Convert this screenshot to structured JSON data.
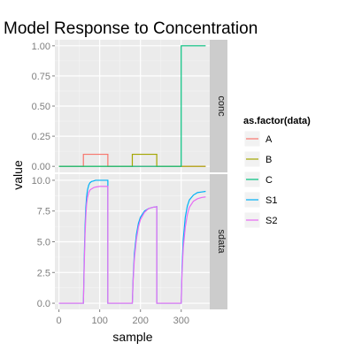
{
  "chart_data": {
    "type": "line",
    "title": "Model Response to Concentration",
    "xlabel": "sample",
    "ylabel": "value",
    "xlim": [
      -10,
      370
    ],
    "x_ticks": [
      0,
      100,
      200,
      300
    ],
    "grid": true,
    "legend": {
      "title": "as.factor(data)",
      "placement": "right",
      "entries": [
        {
          "label": "A",
          "color": "#F8766D"
        },
        {
          "label": "B",
          "color": "#A3A500"
        },
        {
          "label": "C",
          "color": "#00BF7D"
        },
        {
          "label": "S1",
          "color": "#00B0F6"
        },
        {
          "label": "S2",
          "color": "#E76BF3"
        }
      ]
    },
    "panels": [
      {
        "strip": "conc",
        "ylim": [
          -0.05,
          1.05
        ],
        "y_ticks": [
          "0.00",
          "0.25",
          "0.50",
          "0.75",
          "1.00"
        ],
        "series": [
          {
            "name": "A",
            "color": "#F8766D",
            "x": [
              0,
              60,
              60,
              120,
              120,
              360
            ],
            "y": [
              0,
              0,
              0.1,
              0.1,
              0,
              0
            ]
          },
          {
            "name": "B",
            "color": "#A3A500",
            "x": [
              0,
              180,
              180,
              240,
              240,
              360
            ],
            "y": [
              0,
              0,
              0.1,
              0.1,
              0,
              0
            ]
          },
          {
            "name": "C",
            "color": "#00BF7D",
            "x": [
              0,
              300,
              300,
              360
            ],
            "y": [
              0,
              0,
              1,
              1
            ]
          }
        ]
      },
      {
        "strip": "sdata",
        "ylim": [
          -0.5,
          10.5
        ],
        "y_ticks": [
          "0.0",
          "2.5",
          "5.0",
          "7.5",
          "10.0"
        ],
        "series": [
          {
            "name": "S1",
            "color": "#00B0F6",
            "x": [
              0,
              60,
              62,
              64,
              66,
              68,
              70,
              73,
              76,
              80,
              85,
              90,
              100,
              110,
              120,
              120,
              180,
              182,
              185,
              190,
              195,
              200,
              210,
              220,
              230,
              240,
              240,
              300,
              302,
              305,
              310,
              315,
              320,
              330,
              340,
              350,
              360
            ],
            "y": [
              0,
              0,
              3.5,
              6.2,
              7.8,
              8.7,
              9.2,
              9.6,
              9.8,
              9.9,
              9.95,
              10,
              10,
              10,
              10,
              0,
              0,
              2.0,
              4.0,
              5.6,
              6.5,
              7.0,
              7.5,
              7.7,
              7.8,
              7.85,
              0,
              0,
              3.0,
              5.2,
              7.0,
              7.9,
              8.4,
              8.8,
              9.0,
              9.05,
              9.1
            ]
          },
          {
            "name": "S2",
            "color": "#E76BF3",
            "x": [
              0,
              60,
              62,
              64,
              66,
              68,
              70,
              73,
              76,
              80,
              85,
              90,
              100,
              110,
              120,
              120,
              180,
              182,
              185,
              190,
              195,
              200,
              210,
              220,
              230,
              240,
              240,
              300,
              302,
              305,
              310,
              315,
              320,
              330,
              340,
              350,
              360
            ],
            "y": [
              0,
              0,
              3.0,
              5.5,
              7.1,
              8.1,
              8.6,
              9.0,
              9.2,
              9.3,
              9.4,
              9.45,
              9.5,
              9.5,
              9.5,
              0,
              0,
              1.8,
              3.6,
              5.2,
              6.2,
              6.8,
              7.4,
              7.7,
              7.8,
              7.85,
              0,
              0,
              2.5,
              4.5,
              6.2,
              7.2,
              7.8,
              8.3,
              8.5,
              8.6,
              8.65
            ]
          }
        ]
      }
    ]
  }
}
